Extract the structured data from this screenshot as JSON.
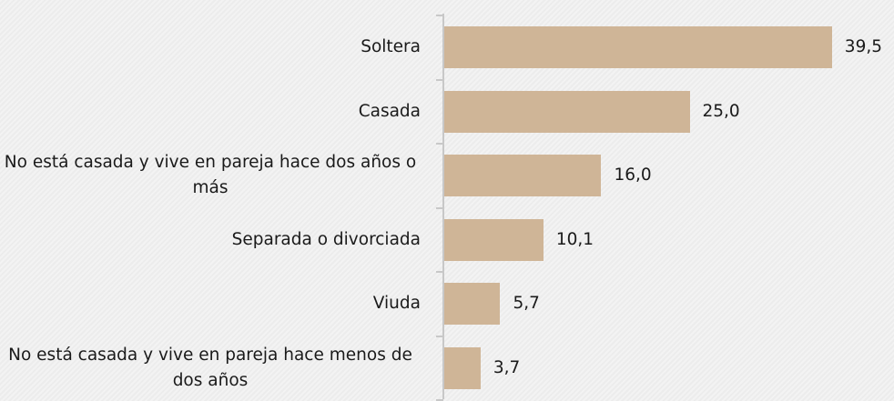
{
  "chart_data": {
    "type": "bar",
    "orientation": "horizontal",
    "categories": [
      "Soltera",
      "Casada",
      "No está casada y vive en pareja hace dos años o más",
      "Separada o divorciada",
      "Viuda",
      "No está casada y vive en pareja hace menos de dos años"
    ],
    "values": [
      39.5,
      25.0,
      16.0,
      10.1,
      5.7,
      3.7
    ],
    "value_labels": [
      "39,5",
      "25,0",
      "16,0",
      "10,1",
      "5,7",
      "3,7"
    ],
    "color": "#cfb597"
  }
}
